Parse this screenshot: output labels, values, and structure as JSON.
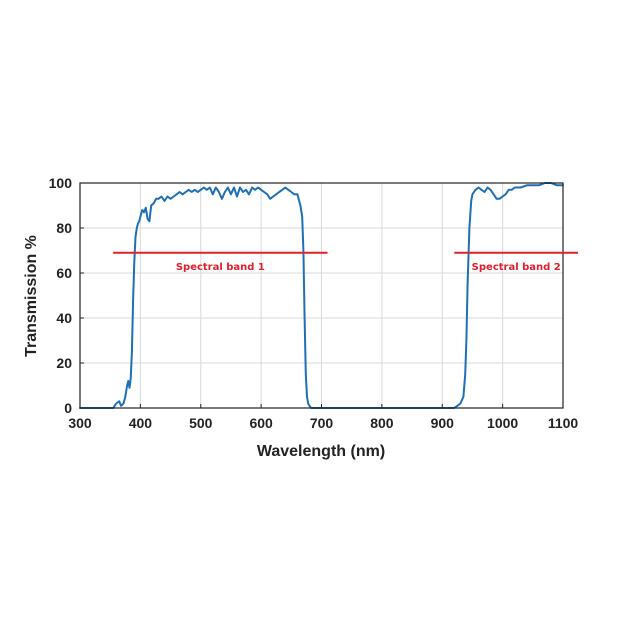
{
  "chart_data": {
    "type": "line",
    "title": "",
    "xlabel": "Wavelength (nm)",
    "ylabel": "Transmission %",
    "xlim": [
      300,
      1100
    ],
    "ylim": [
      0,
      100
    ],
    "xticks": [
      300,
      400,
      500,
      600,
      700,
      800,
      900,
      1000,
      1100
    ],
    "yticks": [
      0,
      20,
      40,
      60,
      80,
      100
    ],
    "grid": true,
    "legend": "none",
    "colors": {
      "series": "#1f6fb4",
      "band": "#e0202a",
      "grid": "#d9d9d9",
      "axis": "#222222"
    },
    "series": [
      {
        "x": [
          300,
          340,
          355,
          360,
          365,
          368,
          372,
          375,
          378,
          380,
          382,
          384,
          386,
          388,
          390,
          392,
          394,
          396,
          398,
          400,
          403,
          406,
          409,
          412,
          415,
          418,
          422,
          426,
          430,
          435,
          440,
          445,
          450,
          455,
          460,
          465,
          470,
          475,
          480,
          485,
          490,
          495,
          500,
          505,
          510,
          515,
          520,
          525,
          530,
          535,
          540,
          545,
          550,
          555,
          560,
          565,
          570,
          575,
          580,
          585,
          590,
          595,
          600,
          605,
          610,
          615,
          620,
          625,
          630,
          635,
          640,
          645,
          650,
          655,
          660,
          665,
          668,
          670,
          672,
          674,
          676,
          678,
          680,
          683,
          686,
          690,
          700,
          720,
          740,
          760,
          800,
          850,
          900,
          910,
          920,
          925,
          930,
          935,
          938,
          940,
          942,
          945,
          948,
          950,
          955,
          960,
          965,
          970,
          975,
          980,
          985,
          990,
          995,
          1000,
          1005,
          1010,
          1015,
          1020,
          1030,
          1040,
          1050,
          1060,
          1070,
          1080,
          1090,
          1100
        ],
        "y": [
          0,
          0,
          0,
          2,
          3,
          1,
          2,
          5,
          10,
          12,
          9,
          13,
          25,
          48,
          65,
          76,
          80,
          82,
          83,
          85,
          88,
          87,
          89,
          84,
          83,
          90,
          91,
          93,
          93,
          94,
          92,
          94,
          93,
          94,
          95,
          96,
          95,
          96,
          97,
          96,
          97,
          96,
          97,
          98,
          97,
          98,
          95,
          98,
          96,
          93,
          96,
          98,
          95,
          98,
          94,
          98,
          96,
          97,
          95,
          98,
          97,
          98,
          97,
          96,
          95,
          93,
          94,
          95,
          96,
          97,
          98,
          97,
          96,
          95,
          95,
          90,
          85,
          70,
          40,
          15,
          5,
          2,
          1,
          0,
          0,
          0,
          0,
          0,
          0,
          0,
          0,
          0,
          0,
          0,
          0,
          1,
          2,
          5,
          15,
          30,
          55,
          80,
          92,
          95,
          97,
          98,
          97,
          96,
          98,
          97,
          95,
          93,
          93,
          94,
          95,
          97,
          97,
          98,
          98,
          99,
          99,
          99,
          100,
          100,
          99,
          99
        ]
      }
    ],
    "bands": [
      {
        "label": "Spectral band 1",
        "x_start": 355,
        "x_end": 710,
        "y": 69
      },
      {
        "label": "Spectral band 2",
        "x_start": 920,
        "x_end": 1125,
        "y": 69
      }
    ]
  }
}
